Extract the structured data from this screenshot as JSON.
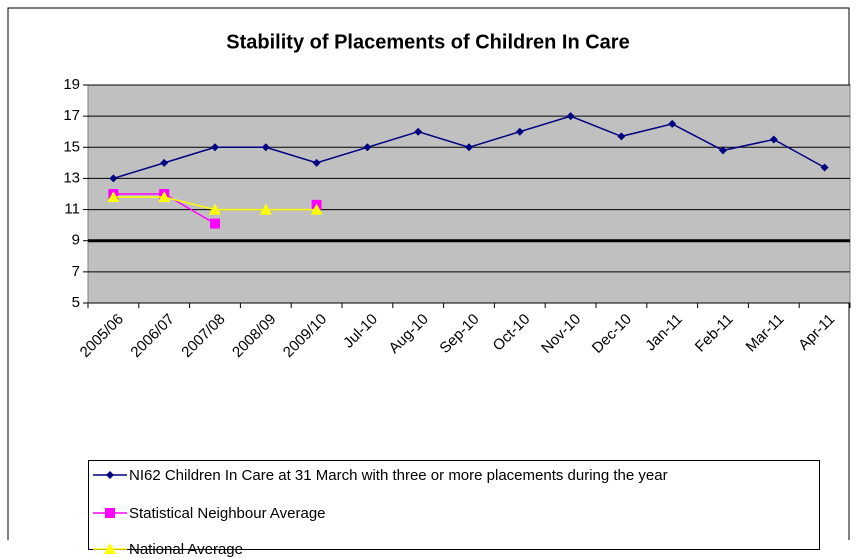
{
  "chart_data": {
    "type": "line",
    "title": "Stability of Placements of Children In Care",
    "categories": [
      "2005/06",
      "2006/07",
      "2007/08",
      "2008/09",
      "2009/10",
      "Jul-10",
      "Aug-10",
      "Sep-10",
      "Oct-10",
      "Nov-10",
      "Dec-10",
      "Jan-11",
      "Feb-11",
      "Mar-11",
      "Apr-11"
    ],
    "series": [
      {
        "name": "NI62 Children In Care at 31 March with three or more placements during the year",
        "color": "#000080",
        "marker": "diamond",
        "values": [
          13,
          14,
          15,
          15,
          14,
          15,
          16,
          15,
          16,
          17,
          15.7,
          16.5,
          14.8,
          15.5,
          13.7
        ]
      },
      {
        "name": "Statistical Neighbour Average",
        "color": "#ff00ff",
        "marker": "square",
        "values": [
          12,
          12,
          10.1,
          null,
          11.3,
          null,
          null,
          null,
          null,
          null,
          null,
          null,
          null,
          null,
          null
        ]
      },
      {
        "name": "National Average",
        "color": "#ffff00",
        "marker": "triangle",
        "values": [
          11.8,
          11.8,
          11,
          11,
          11,
          null,
          null,
          null,
          null,
          null,
          null,
          null,
          null,
          null,
          null
        ]
      }
    ],
    "reference_line": {
      "value": 9,
      "color": "#000000"
    },
    "ylim": [
      5,
      19
    ],
    "yticks": [
      5,
      7,
      9,
      11,
      13,
      15,
      17,
      19
    ],
    "grid": true
  }
}
